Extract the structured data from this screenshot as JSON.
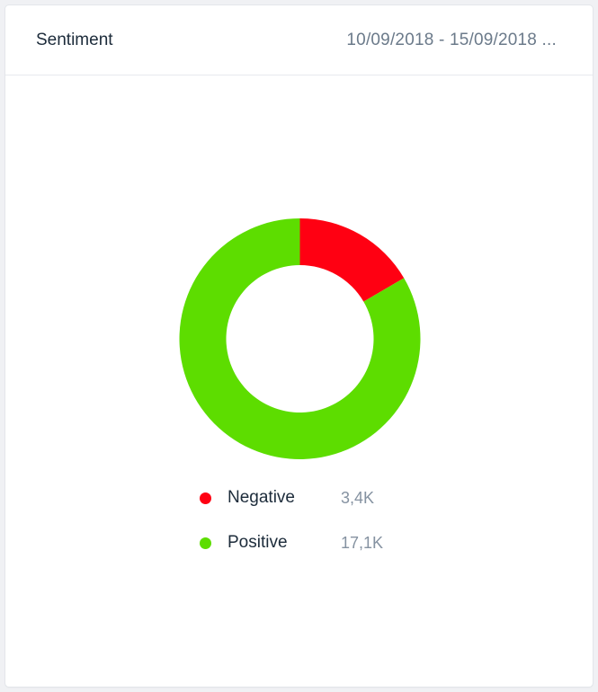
{
  "header": {
    "title": "Sentiment",
    "date_range": "10/09/2018 - 15/09/2018 ..."
  },
  "chart_data": {
    "type": "pie",
    "categories": [
      "Negative",
      "Positive"
    ],
    "values": [
      3400,
      17100
    ],
    "value_labels": [
      "3,4K",
      "17,1K"
    ],
    "colors": [
      "#ff0012",
      "#5ddd00"
    ],
    "donut": true,
    "legend_placement": "bottom"
  }
}
